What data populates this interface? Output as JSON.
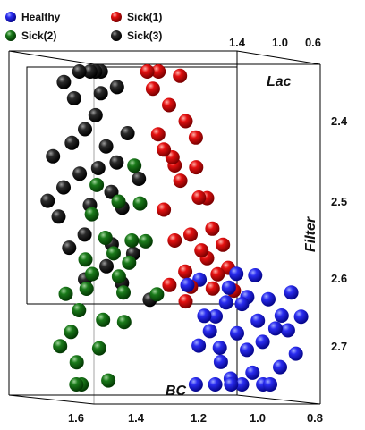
{
  "chart_data": {
    "type": "scatter",
    "dimensions": "3d",
    "title": "",
    "axes": {
      "lac": {
        "label": "Lac",
        "ticks": [
          "1.4",
          "1.0",
          "0.6"
        ]
      },
      "filter": {
        "label": "Filter",
        "ticks": [
          "2.4",
          "2.5",
          "2.6",
          "2.7"
        ]
      },
      "bc": {
        "label": "BC",
        "ticks": [
          "1.6",
          "1.4",
          "1.2",
          "1.0",
          "0.8"
        ]
      }
    },
    "legend_position": "top-left",
    "series": [
      {
        "name": "Healthy",
        "color": "#1010e0",
        "points": [
          [
            1.1,
            2.64,
            0.95
          ],
          [
            1.15,
            2.62,
            0.9
          ],
          [
            1.05,
            2.6,
            1.0
          ],
          [
            1.2,
            2.66,
            0.85
          ],
          [
            1.0,
            2.63,
            1.05
          ],
          [
            0.95,
            2.65,
            1.1
          ],
          [
            1.12,
            2.68,
            0.92
          ],
          [
            1.08,
            2.7,
            0.98
          ],
          [
            1.25,
            2.61,
            0.88
          ],
          [
            0.98,
            2.67,
            1.02
          ],
          [
            1.03,
            2.69,
            0.96
          ],
          [
            1.18,
            2.72,
            0.87
          ],
          [
            0.92,
            2.62,
            1.08
          ],
          [
            1.14,
            2.74,
            0.93
          ],
          [
            1.06,
            2.73,
            0.99
          ],
          [
            1.22,
            2.68,
            0.84
          ],
          [
            0.9,
            2.7,
            1.12
          ],
          [
            1.0,
            2.75,
            1.0
          ],
          [
            1.16,
            2.64,
            0.89
          ],
          [
            1.1,
            2.76,
            0.95
          ],
          [
            0.96,
            2.72,
            1.06
          ],
          [
            1.26,
            2.7,
            0.82
          ],
          [
            1.04,
            2.66,
            1.01
          ],
          [
            1.2,
            2.76,
            0.86
          ],
          [
            0.93,
            2.67,
            1.09
          ],
          [
            1.12,
            2.6,
            0.94
          ],
          [
            1.3,
            2.62,
            0.8
          ],
          [
            1.02,
            2.78,
            1.03
          ],
          [
            1.08,
            2.63,
            0.97
          ],
          [
            1.18,
            2.7,
            0.9
          ],
          [
            0.88,
            2.65,
            1.14
          ],
          [
            1.24,
            2.66,
            0.83
          ],
          [
            1.14,
            2.8,
            0.92
          ],
          [
            1.26,
            2.86,
            0.9
          ]
        ]
      },
      {
        "name": "Sick(1)",
        "color": "#dd0000",
        "points": [
          [
            1.3,
            2.4,
            0.85
          ],
          [
            1.35,
            2.45,
            0.8
          ],
          [
            1.25,
            2.5,
            0.9
          ],
          [
            1.4,
            2.42,
            0.78
          ],
          [
            1.28,
            2.55,
            0.88
          ],
          [
            1.32,
            2.48,
            0.83
          ],
          [
            1.38,
            2.52,
            0.79
          ],
          [
            1.22,
            2.58,
            0.92
          ],
          [
            1.36,
            2.38,
            0.81
          ],
          [
            1.3,
            2.6,
            0.86
          ],
          [
            1.26,
            2.46,
            0.89
          ],
          [
            1.42,
            2.36,
            0.76
          ],
          [
            1.2,
            2.54,
            0.94
          ],
          [
            1.34,
            2.56,
            0.82
          ],
          [
            1.18,
            2.6,
            0.96
          ],
          [
            1.28,
            2.62,
            0.87
          ],
          [
            1.4,
            2.32,
            0.77
          ],
          [
            1.24,
            2.57,
            0.91
          ],
          [
            1.36,
            2.62,
            0.8
          ],
          [
            1.16,
            2.56,
            0.98
          ],
          [
            1.32,
            2.34,
            0.84
          ],
          [
            1.2,
            2.62,
            0.93
          ],
          [
            1.26,
            2.42,
            0.9
          ],
          [
            1.14,
            2.59,
            1.0
          ],
          [
            1.38,
            2.44,
            0.79
          ],
          [
            1.22,
            2.5,
            0.92
          ],
          [
            1.3,
            2.64,
            0.85
          ],
          [
            1.44,
            2.3,
            0.75
          ],
          [
            1.12,
            2.62,
            1.01
          ],
          [
            1.34,
            2.46,
            0.82
          ]
        ]
      },
      {
        "name": "Sick(2)",
        "color": "#0e6a0e",
        "points": [
          [
            1.6,
            2.6,
            0.95
          ],
          [
            1.55,
            2.55,
            1.0
          ],
          [
            1.65,
            2.65,
            0.9
          ],
          [
            1.5,
            2.5,
            1.05
          ],
          [
            1.58,
            2.7,
            0.92
          ],
          [
            1.62,
            2.58,
            0.97
          ],
          [
            1.48,
            2.62,
            1.08
          ],
          [
            1.66,
            2.72,
            0.88
          ],
          [
            1.52,
            2.57,
            1.02
          ],
          [
            1.7,
            2.63,
            0.85
          ],
          [
            1.45,
            2.55,
            1.1
          ],
          [
            1.56,
            2.66,
            0.98
          ],
          [
            1.64,
            2.76,
            0.91
          ],
          [
            1.42,
            2.5,
            1.12
          ],
          [
            1.6,
            2.52,
            0.96
          ],
          [
            1.68,
            2.68,
            0.87
          ],
          [
            1.5,
            2.6,
            1.04
          ],
          [
            1.54,
            2.74,
            1.0
          ],
          [
            1.46,
            2.58,
            1.09
          ],
          [
            1.72,
            2.7,
            0.84
          ],
          [
            1.4,
            2.55,
            1.13
          ],
          [
            1.62,
            2.62,
            0.94
          ],
          [
            1.58,
            2.48,
            0.99
          ],
          [
            1.48,
            2.66,
            1.06
          ],
          [
            1.66,
            2.8,
            0.89
          ],
          [
            1.36,
            2.62,
            1.15
          ],
          [
            1.44,
            2.45,
            1.11
          ]
        ]
      },
      {
        "name": "Sick(3)",
        "color": "#111111",
        "points": [
          [
            1.55,
            2.45,
            1.2
          ],
          [
            1.6,
            2.4,
            1.15
          ],
          [
            1.5,
            2.48,
            1.25
          ],
          [
            1.65,
            2.42,
            1.1
          ],
          [
            1.58,
            2.5,
            1.18
          ],
          [
            1.62,
            2.46,
            1.13
          ],
          [
            1.48,
            2.44,
            1.27
          ],
          [
            1.68,
            2.48,
            1.08
          ],
          [
            1.52,
            2.42,
            1.23
          ],
          [
            1.7,
            2.52,
            1.05
          ],
          [
            1.56,
            2.38,
            1.19
          ],
          [
            1.64,
            2.36,
            1.12
          ],
          [
            1.46,
            2.5,
            1.28
          ],
          [
            1.6,
            2.54,
            1.16
          ],
          [
            1.54,
            2.35,
            1.21
          ],
          [
            1.72,
            2.44,
            1.04
          ],
          [
            1.5,
            2.55,
            1.24
          ],
          [
            1.66,
            2.56,
            1.09
          ],
          [
            1.58,
            2.32,
            1.17
          ],
          [
            1.44,
            2.4,
            1.3
          ],
          [
            1.62,
            2.3,
            1.14
          ],
          [
            1.52,
            2.58,
            1.22
          ],
          [
            1.68,
            2.34,
            1.07
          ],
          [
            1.48,
            2.34,
            1.26
          ],
          [
            1.56,
            2.28,
            1.2
          ],
          [
            1.4,
            2.46,
            1.32
          ],
          [
            1.74,
            2.5,
            1.02
          ],
          [
            1.46,
            2.6,
            1.29
          ],
          [
            1.6,
            2.6,
            1.15
          ],
          [
            1.54,
            2.26,
            1.21
          ],
          [
            1.42,
            2.56,
            1.31
          ],
          [
            1.36,
            2.62,
            1.35
          ]
        ]
      }
    ]
  }
}
